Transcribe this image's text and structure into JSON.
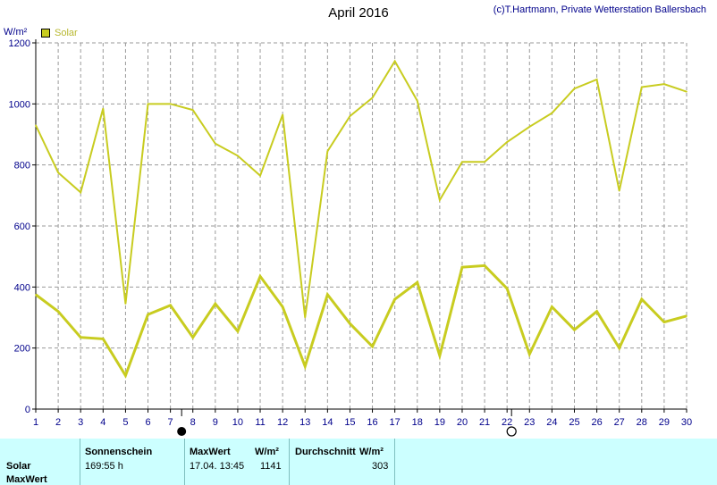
{
  "header": {
    "title": "April 2016",
    "copyright": "(c)T.Hartmann, Private Wetterstation Ballersbach",
    "unit": "W/m²",
    "legend_label": "Solar"
  },
  "chart_data": {
    "type": "line",
    "title": "April 2016",
    "ylabel": "W/m²",
    "ylim": [
      0,
      1200
    ],
    "yticks": [
      0,
      200,
      400,
      600,
      800,
      1000,
      1200
    ],
    "x": [
      1,
      2,
      3,
      4,
      5,
      6,
      7,
      8,
      9,
      10,
      11,
      12,
      13,
      14,
      15,
      16,
      17,
      18,
      19,
      20,
      21,
      22,
      23,
      24,
      25,
      26,
      27,
      28,
      29,
      30
    ],
    "grid": true,
    "legend": "top-left",
    "series": [
      {
        "name": "Solar",
        "role": "max",
        "color": "#c8cc20",
        "values": [
          930,
          775,
          710,
          985,
          345,
          1000,
          1000,
          980,
          870,
          830,
          765,
          965,
          300,
          845,
          960,
          1020,
          1140,
          1010,
          685,
          810,
          810,
          875,
          925,
          970,
          1050,
          1080,
          715,
          1055,
          1065,
          1040
        ]
      },
      {
        "role": "mean",
        "color": "#c8cc20",
        "values": [
          375,
          320,
          235,
          230,
          110,
          310,
          340,
          235,
          345,
          255,
          435,
          335,
          140,
          375,
          280,
          205,
          360,
          415,
          175,
          465,
          470,
          395,
          180,
          335,
          260,
          320,
          200,
          360,
          285,
          305
        ]
      }
    ],
    "moon_phases": [
      {
        "day": 7.5,
        "phase": "new-moon"
      },
      {
        "day": 22.2,
        "phase": "full-moon"
      }
    ]
  },
  "summary": {
    "row_label": "Solar",
    "row_label2": "MaxWert",
    "sunshine_header": "Sonnenschein",
    "sunshine_value": "169:55 h",
    "max_header": "MaxWert",
    "max_unit": "W/m²",
    "max_time": "17.04.  13:45",
    "max_value": "1141",
    "avg_header": "Durchschnitt",
    "avg_unit": "W/m²",
    "avg_value": "303"
  }
}
